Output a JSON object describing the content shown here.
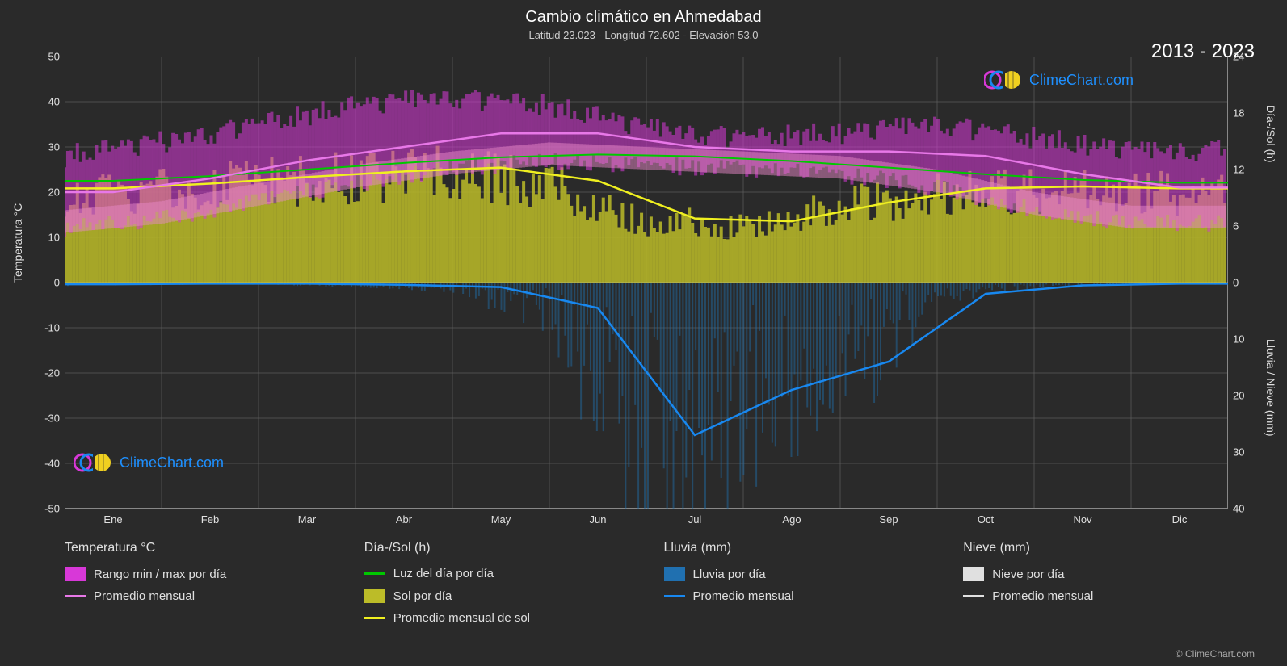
{
  "title": "Cambio climático en Ahmedabad",
  "subtitle": "Latitud 23.023 - Longitud 72.602 - Elevación 53.0",
  "year_range": "2013 - 2023",
  "logo_text": "ClimeChart.com",
  "copyright": "© ClimeChart.com",
  "axes": {
    "left_label": "Temperatura °C",
    "right_label_top": "Día-/Sol (h)",
    "right_label_bottom": "Lluvia / Nieve (mm)",
    "y_left": {
      "min": -50,
      "max": 50,
      "step": 10
    },
    "y_right_top": {
      "min": 0,
      "max": 24,
      "step": 6
    },
    "y_right_bottom": {
      "min": 0,
      "max": 40,
      "step": 10
    },
    "months": [
      "Ene",
      "Feb",
      "Mar",
      "Abr",
      "May",
      "Jun",
      "Jul",
      "Ago",
      "Sep",
      "Oct",
      "Nov",
      "Dic"
    ]
  },
  "colors": {
    "background": "#2a2a2a",
    "grid": "#707070",
    "grid_alpha": 0.5,
    "text": "#e0e0e0",
    "temp_range": "#d838d8",
    "temp_range_inner": "#e888c8",
    "temp_avg": "#e878e8",
    "daylight": "#00c800",
    "sun_fill": "#bcbc28",
    "sun_avg": "#f0f020",
    "rain_fill": "#2070b0",
    "rain_avg": "#1888f0",
    "snow_fill": "#e0e0e0",
    "snow_avg": "#e0e0e0",
    "logo_magenta": "#d838d8",
    "logo_blue": "#1888f0",
    "logo_yellow": "#f0d020"
  },
  "legend": {
    "temp_heading": "Temperatura °C",
    "temp_range": "Rango min / max por día",
    "temp_avg": "Promedio mensual",
    "daysun_heading": "Día-/Sol (h)",
    "daylight": "Luz del día por día",
    "sunfill": "Sol por día",
    "sun_avg": "Promedio mensual de sol",
    "rain_heading": "Lluvia (mm)",
    "rain_daily": "Lluvia por día",
    "rain_avg": "Promedio mensual",
    "snow_heading": "Nieve (mm)",
    "snow_daily": "Nieve por día",
    "snow_avg": "Promedio mensual"
  },
  "series": {
    "temp_min": [
      12,
      14,
      18,
      22,
      25,
      27,
      26,
      25,
      24,
      21,
      16,
      13
    ],
    "temp_max": [
      28,
      31,
      35,
      39,
      41,
      39,
      34,
      32,
      33,
      35,
      32,
      29
    ],
    "temp_avg": [
      20,
      23,
      27,
      30,
      33,
      33,
      30,
      29,
      29,
      28,
      24,
      21
    ],
    "daylight_h": [
      10.8,
      11.3,
      12.0,
      12.7,
      13.3,
      13.6,
      13.4,
      12.9,
      12.2,
      11.5,
      10.9,
      10.6
    ],
    "sun_h": [
      10.0,
      10.5,
      11.2,
      11.8,
      12.2,
      10.8,
      6.8,
      6.5,
      8.5,
      10.0,
      10.2,
      10.0
    ],
    "rain_mm": [
      0.3,
      0.2,
      0.2,
      0.4,
      0.8,
      4.5,
      27.0,
      19.0,
      14.0,
      2.0,
      0.5,
      0.2
    ],
    "snow_mm": [
      0,
      0,
      0,
      0,
      0,
      0,
      0,
      0,
      0,
      0,
      0,
      0
    ]
  }
}
